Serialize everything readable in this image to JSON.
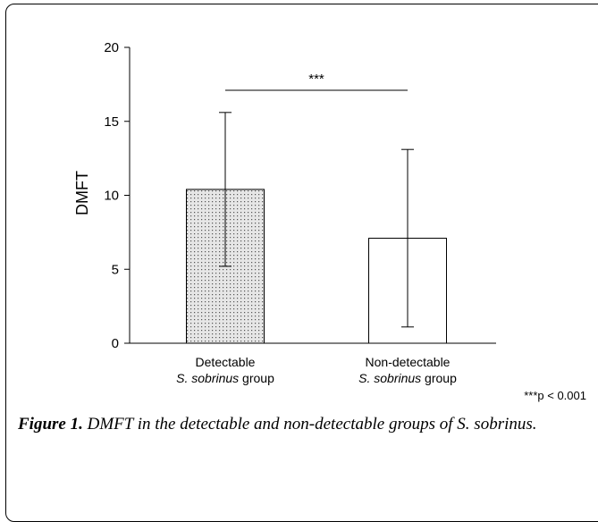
{
  "chart_data": {
    "type": "bar",
    "categories": [
      {
        "line1": "Detectable",
        "line2_italic": "S. sobrinus",
        "line2_rest": " group"
      },
      {
        "line1": "Non-detectable",
        "line2_italic": "S. sobrinus",
        "line2_rest": " group"
      }
    ],
    "values": [
      10.4,
      7.1
    ],
    "error": [
      5.2,
      6.0
    ],
    "bar_styles": [
      "dotted",
      "white"
    ],
    "ylabel": "DMFT",
    "ylim": [
      0,
      20
    ],
    "yticks": [
      "0",
      "5",
      "10",
      "15",
      "20"
    ],
    "significance": {
      "label": "***",
      "between": [
        0,
        1
      ]
    },
    "footnote": "***p < 0.001",
    "grid": false,
    "colors": {
      "axis": "#000000",
      "bar_fill": "#e6e6e6",
      "dot": "#555555"
    }
  },
  "caption": {
    "figure_label": "Figure 1.",
    "text": " DMFT in the detectable and non-detectable groups of S. sobrinus."
  }
}
